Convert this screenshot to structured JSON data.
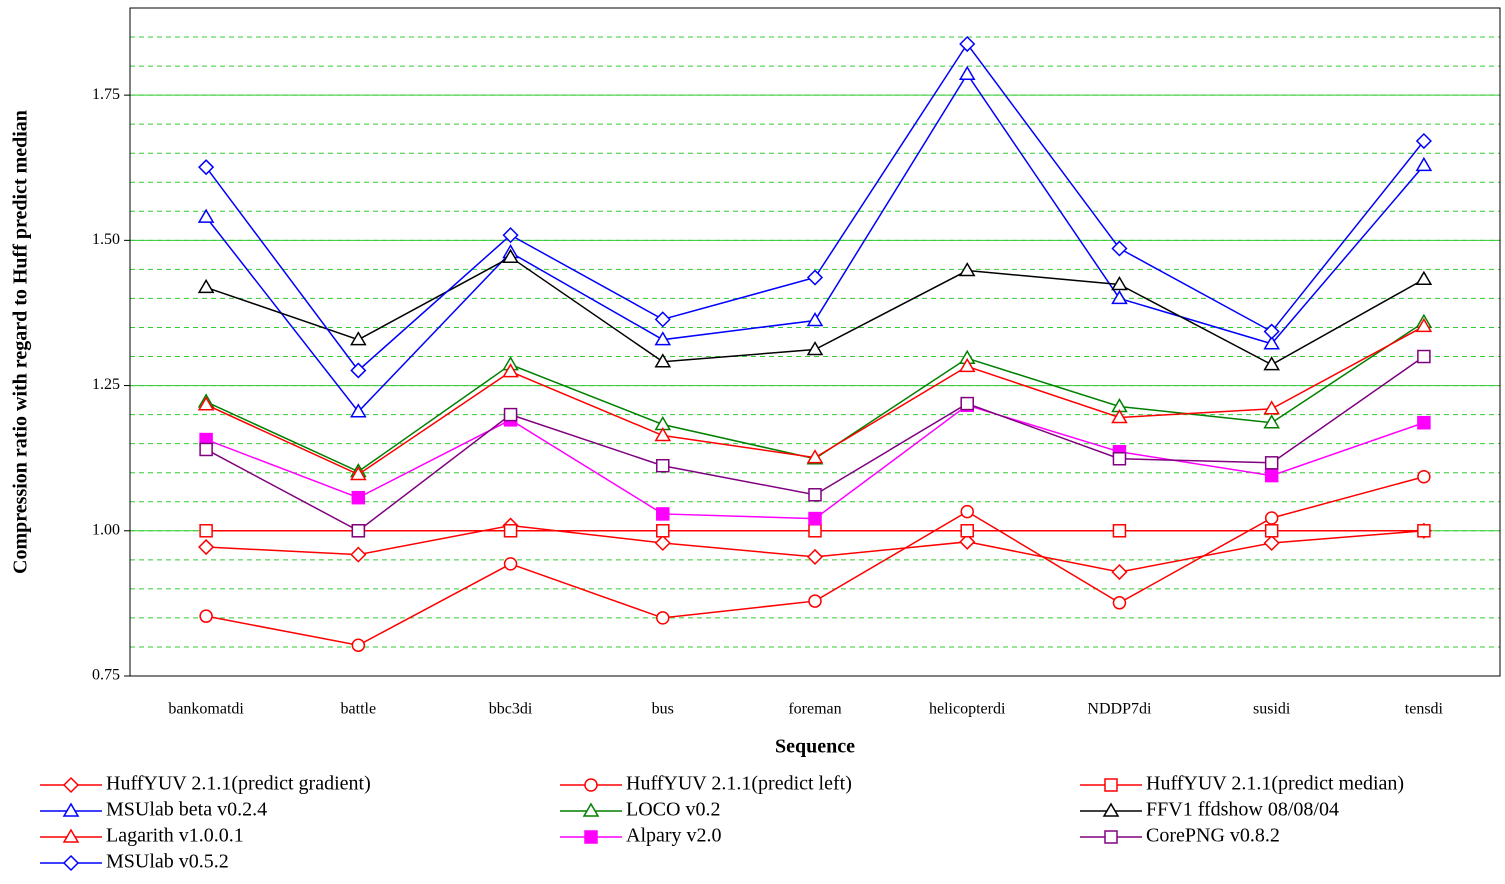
{
  "chart_data": {
    "type": "line",
    "x_label": "Sequence",
    "y_label": "Compression ratio with regard to Huff predict median",
    "categories": [
      "bankomatdi",
      "battle",
      "bbc3di",
      "bus",
      "foreman",
      "helicopterdi",
      "NDDP7di",
      "susidi",
      "tensdi"
    ],
    "ylim": [
      0.75,
      1.9
    ],
    "yticks": [
      {
        "value": 0.75,
        "label": "0.75"
      },
      {
        "value": 1.0,
        "label": "1.00"
      },
      {
        "value": 1.25,
        "label": "1.25"
      },
      {
        "value": 1.5,
        "label": "1.50"
      },
      {
        "value": 1.75,
        "label": "1.75"
      }
    ],
    "grid": true,
    "minor_grid_step": 0.05,
    "series": [
      {
        "name": "HuffYUV 2.1.1(predict gradient)",
        "color": "#ff0000",
        "marker": "diamond",
        "values": [
          0.972,
          0.959,
          1.009,
          0.979,
          0.955,
          0.981,
          0.929,
          0.979,
          1.0
        ]
      },
      {
        "name": "HuffYUV 2.1.1(predict left)",
        "color": "#ff0000",
        "marker": "circle",
        "values": [
          0.853,
          0.803,
          0.943,
          0.85,
          0.879,
          1.033,
          0.876,
          1.022,
          1.093
        ]
      },
      {
        "name": "HuffYUV 2.1.1(predict median)",
        "color": "#ff0000",
        "marker": "square",
        "values": [
          1.0,
          1.0,
          1.0,
          1.0,
          1.0,
          1.0,
          1.0,
          1.0,
          1.0
        ]
      },
      {
        "name": "MSUlab beta v0.2.4",
        "color": "#0000ff",
        "marker": "triangle",
        "values": [
          1.54,
          1.205,
          1.479,
          1.329,
          1.362,
          1.786,
          1.4,
          1.322,
          1.629
        ]
      },
      {
        "name": "LOCO v0.2",
        "color": "#008000",
        "marker": "triangle",
        "values": [
          1.222,
          1.102,
          1.286,
          1.183,
          1.124,
          1.297,
          1.214,
          1.186,
          1.359
        ]
      },
      {
        "name": "FFV1 ffdshow 08/08/04",
        "color": "#000000",
        "marker": "triangle",
        "values": [
          1.419,
          1.329,
          1.471,
          1.291,
          1.312,
          1.448,
          1.424,
          1.286,
          1.433
        ]
      },
      {
        "name": "Lagarith v1.0.0.1",
        "color": "#ff0000",
        "marker": "triangle",
        "values": [
          1.217,
          1.097,
          1.274,
          1.164,
          1.126,
          1.283,
          1.195,
          1.21,
          1.352
        ]
      },
      {
        "name": "Alpary v2.0",
        "color": "#ff00ff",
        "marker": "filled-square",
        "values": [
          1.157,
          1.057,
          1.191,
          1.029,
          1.021,
          1.216,
          1.136,
          1.095,
          1.186
        ]
      },
      {
        "name": "CorePNG v0.8.2",
        "color": "#800080",
        "marker": "square",
        "values": [
          1.14,
          1.0,
          1.2,
          1.112,
          1.062,
          1.219,
          1.124,
          1.117,
          1.3
        ]
      },
      {
        "name": "MSUlab v0.5.2",
        "color": "#0000ff",
        "marker": "diamond",
        "values": [
          1.626,
          1.276,
          1.509,
          1.364,
          1.436,
          1.838,
          1.486,
          1.343,
          1.671
        ]
      }
    ]
  }
}
